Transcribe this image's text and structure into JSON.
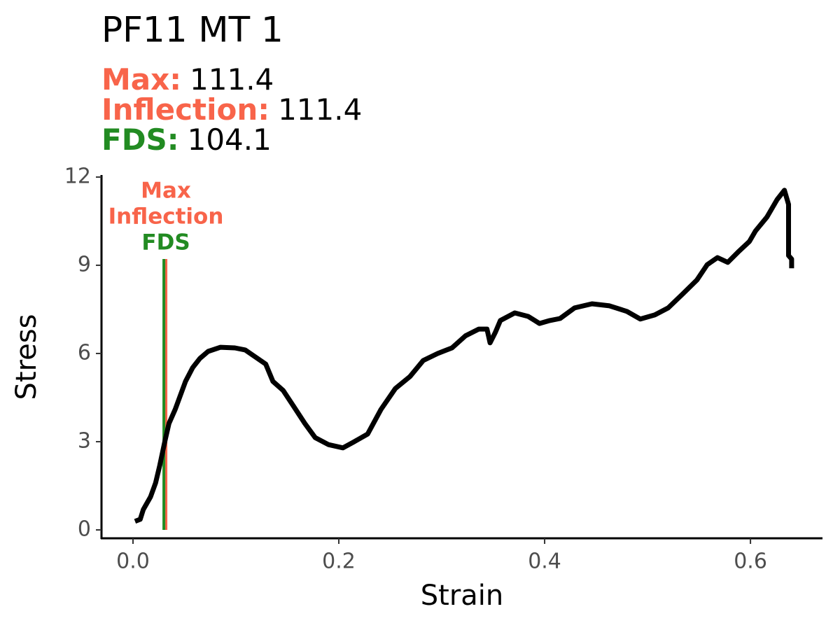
{
  "chart_data": {
    "type": "line",
    "title": "PF11 MT 1",
    "summary": [
      {
        "label": "Max:",
        "value": 111.4,
        "color": "#f8644a"
      },
      {
        "label": "Inflection:",
        "value": 111.4,
        "color": "#f8644a"
      },
      {
        "label": "FDS:",
        "value": 104.1,
        "color": "#228b22"
      }
    ],
    "x_label": "Strain",
    "y_label": "Stress",
    "xlim": [
      -0.0306,
      0.67
    ],
    "ylim": [
      -0.286,
      12.07
    ],
    "xticks": [
      {
        "value": 0,
        "label": "0.0"
      },
      {
        "value": 0.2,
        "label": "0.2"
      },
      {
        "value": 0.4,
        "label": "0.4"
      },
      {
        "value": 0.6,
        "label": "0.6"
      }
    ],
    "yticks": [
      0,
      3,
      6,
      9,
      12
    ],
    "markers": [
      {
        "label": "Max",
        "x": 0.032,
        "color": "#f8644a"
      },
      {
        "label": "Inflection",
        "x": 0.032,
        "color": "#f8644a"
      },
      {
        "label": "FDS",
        "x": 0.03,
        "color": "#228b22"
      }
    ],
    "series": [
      {
        "name": "Stress",
        "color": "#000000",
        "x": [
          0.002,
          0.007,
          0.01,
          0.017,
          0.022,
          0.026,
          0.031,
          0.035,
          0.041,
          0.046,
          0.051,
          0.058,
          0.065,
          0.073,
          0.085,
          0.099,
          0.109,
          0.119,
          0.129,
          0.136,
          0.146,
          0.156,
          0.167,
          0.177,
          0.19,
          0.204,
          0.214,
          0.228,
          0.241,
          0.255,
          0.269,
          0.282,
          0.296,
          0.31,
          0.323,
          0.336,
          0.344,
          0.347,
          0.352,
          0.357,
          0.371,
          0.384,
          0.395,
          0.405,
          0.415,
          0.429,
          0.446,
          0.463,
          0.48,
          0.493,
          0.507,
          0.52,
          0.534,
          0.548,
          0.558,
          0.568,
          0.578,
          0.588,
          0.599,
          0.605,
          0.616,
          0.626,
          0.633,
          0.637,
          0.637,
          0.64,
          0.64
        ],
        "values": [
          0.29,
          0.36,
          0.69,
          1.12,
          1.6,
          2.19,
          3.02,
          3.62,
          4.1,
          4.57,
          5.05,
          5.52,
          5.83,
          6.07,
          6.21,
          6.19,
          6.12,
          5.88,
          5.64,
          5.05,
          4.74,
          4.21,
          3.62,
          3.14,
          2.9,
          2.79,
          2.98,
          3.26,
          4.1,
          4.81,
          5.21,
          5.76,
          6.0,
          6.19,
          6.6,
          6.83,
          6.83,
          6.36,
          6.71,
          7.12,
          7.38,
          7.26,
          7.02,
          7.12,
          7.19,
          7.55,
          7.69,
          7.62,
          7.43,
          7.17,
          7.31,
          7.55,
          8.02,
          8.5,
          9.02,
          9.26,
          9.1,
          9.45,
          9.81,
          10.17,
          10.64,
          11.24,
          11.55,
          11.07,
          9.33,
          9.21,
          8.9
        ]
      }
    ]
  }
}
